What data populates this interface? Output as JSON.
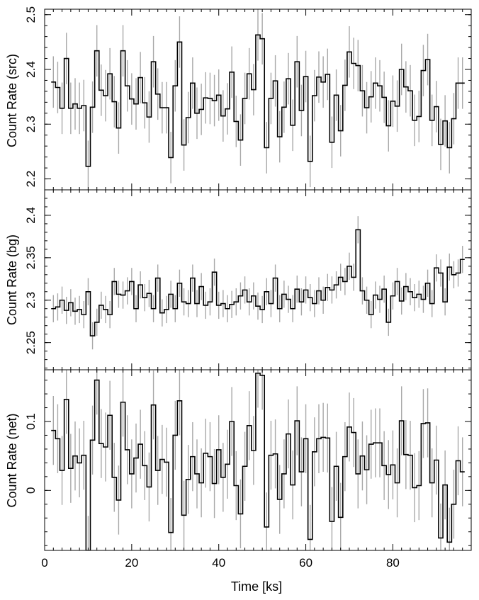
{
  "chart_data": [
    {
      "type": "line",
      "step": true,
      "error_bars": true,
      "ylabel": "Count Rate (src)",
      "xlim": [
        0,
        98
      ],
      "ylim": [
        2.18,
        2.51
      ],
      "yticks": [
        2.2,
        2.3,
        2.4,
        2.5
      ],
      "x": [
        2,
        3,
        4,
        5,
        6,
        7,
        8,
        9,
        10,
        11,
        12,
        13,
        14,
        15,
        16,
        17,
        18,
        19,
        20,
        21,
        22,
        23,
        24,
        25,
        26,
        27,
        28,
        29,
        30,
        31,
        32,
        33,
        34,
        35,
        36,
        37,
        38,
        39,
        40,
        41,
        42,
        43,
        44,
        45,
        46,
        47,
        48,
        49,
        50,
        51,
        52,
        53,
        54,
        55,
        56,
        57,
        58,
        59,
        60,
        61,
        62,
        63,
        64,
        65,
        66,
        67,
        68,
        69,
        70,
        71,
        72,
        73,
        74,
        75,
        76,
        77,
        78,
        79,
        80,
        81,
        82,
        83,
        84,
        85,
        86,
        87,
        88,
        89,
        90,
        91,
        92,
        93,
        94,
        95,
        96
      ],
      "y": [
        2.377,
        2.367,
        2.329,
        2.42,
        2.329,
        2.337,
        2.329,
        2.334,
        2.223,
        2.331,
        2.434,
        2.362,
        2.352,
        2.392,
        2.341,
        2.293,
        2.434,
        2.37,
        2.346,
        2.337,
        2.385,
        2.339,
        2.313,
        2.414,
        2.355,
        2.33,
        2.33,
        2.239,
        2.37,
        2.45,
        2.262,
        2.312,
        2.375,
        2.32,
        2.327,
        2.348,
        2.347,
        2.343,
        2.353,
        2.315,
        2.328,
        2.395,
        2.305,
        2.271,
        2.347,
        2.392,
        2.363,
        2.463,
        2.456,
        2.257,
        2.347,
        2.379,
        2.277,
        2.331,
        2.383,
        2.298,
        2.414,
        2.325,
        2.387,
        2.232,
        2.352,
        2.386,
        2.377,
        2.391,
        2.267,
        2.353,
        2.288,
        2.371,
        2.432,
        2.411,
        2.407,
        2.361,
        2.33,
        2.35,
        2.375,
        2.37,
        2.349,
        2.297,
        2.342,
        2.333,
        2.4,
        2.368,
        2.361,
        2.307,
        2.314,
        2.398,
        2.418,
        2.307,
        2.332,
        2.263,
        2.306,
        2.257,
        2.31,
        2.375,
        2.375
      ],
      "yerr": 0.047
    },
    {
      "type": "line",
      "step": true,
      "error_bars": true,
      "ylabel": "Count Rate (bg)",
      "xlim": [
        0,
        98
      ],
      "ylim": [
        2.218,
        2.43
      ],
      "yticks": [
        2.25,
        2.3,
        2.35,
        2.4
      ],
      "x": [
        2,
        3,
        4,
        5,
        6,
        7,
        8,
        9,
        10,
        11,
        12,
        13,
        14,
        15,
        16,
        17,
        18,
        19,
        20,
        21,
        22,
        23,
        24,
        25,
        26,
        27,
        28,
        29,
        30,
        31,
        32,
        33,
        34,
        35,
        36,
        37,
        38,
        39,
        40,
        41,
        42,
        43,
        44,
        45,
        46,
        47,
        48,
        49,
        50,
        51,
        52,
        53,
        54,
        55,
        56,
        57,
        58,
        59,
        60,
        61,
        62,
        63,
        64,
        65,
        66,
        67,
        68,
        69,
        70,
        71,
        72,
        73,
        74,
        75,
        76,
        77,
        78,
        79,
        80,
        81,
        82,
        83,
        84,
        85,
        86,
        87,
        88,
        89,
        90,
        91,
        92,
        93,
        94,
        95,
        96
      ],
      "y": [
        2.29,
        2.292,
        2.3,
        2.288,
        2.297,
        2.287,
        2.289,
        2.283,
        2.31,
        2.258,
        2.274,
        2.294,
        2.289,
        2.283,
        2.322,
        2.307,
        2.306,
        2.311,
        2.322,
        2.29,
        2.318,
        2.303,
        2.308,
        2.29,
        2.326,
        2.285,
        2.289,
        2.307,
        2.29,
        2.32,
        2.298,
        2.296,
        2.326,
        2.296,
        2.316,
        2.294,
        2.298,
        2.333,
        2.294,
        2.296,
        2.29,
        2.295,
        2.298,
        2.305,
        2.312,
        2.298,
        2.305,
        2.293,
        2.289,
        2.31,
        2.296,
        2.326,
        2.29,
        2.307,
        2.301,
        2.29,
        2.313,
        2.298,
        2.312,
        2.303,
        2.296,
        2.311,
        2.3,
        2.315,
        2.312,
        2.318,
        2.327,
        2.322,
        2.34,
        2.327,
        2.383,
        2.311,
        2.3,
        2.283,
        2.306,
        2.301,
        2.313,
        2.274,
        2.305,
        2.322,
        2.299,
        2.316,
        2.31,
        2.303,
        2.307,
        2.301,
        2.32,
        2.296,
        2.338,
        2.332,
        2.298,
        2.339,
        2.33,
        2.332,
        2.348
      ],
      "yerr": 0.016
    },
    {
      "type": "line",
      "step": true,
      "error_bars": true,
      "ylabel": "Count Rate (net)",
      "xlabel": "Time [ks]",
      "xlim": [
        0,
        98
      ],
      "xticks": [
        0,
        20,
        40,
        60,
        80
      ],
      "ylim": [
        -0.087,
        0.175
      ],
      "yticks": [
        0,
        0.1
      ],
      "x": [
        2,
        3,
        4,
        5,
        6,
        7,
        8,
        9,
        10,
        11,
        12,
        13,
        14,
        15,
        16,
        17,
        18,
        19,
        20,
        21,
        22,
        23,
        24,
        25,
        26,
        27,
        28,
        29,
        30,
        31,
        32,
        33,
        34,
        35,
        36,
        37,
        38,
        39,
        40,
        41,
        42,
        43,
        44,
        45,
        46,
        47,
        48,
        49,
        50,
        51,
        52,
        53,
        54,
        55,
        56,
        57,
        58,
        59,
        60,
        61,
        62,
        63,
        64,
        65,
        66,
        67,
        68,
        69,
        70,
        71,
        72,
        73,
        74,
        75,
        76,
        77,
        78,
        79,
        80,
        81,
        82,
        83,
        84,
        85,
        86,
        87,
        88,
        89,
        90,
        91,
        92,
        93,
        94,
        95,
        96
      ],
      "y": [
        0.087,
        0.075,
        0.029,
        0.132,
        0.032,
        0.05,
        0.04,
        0.051,
        -0.087,
        0.073,
        0.16,
        0.068,
        0.063,
        0.109,
        0.019,
        -0.014,
        0.128,
        0.059,
        0.024,
        0.047,
        0.067,
        0.036,
        0.005,
        0.124,
        0.029,
        0.045,
        0.041,
        -0.061,
        0.08,
        0.13,
        -0.036,
        0.016,
        0.049,
        0.024,
        0.011,
        0.054,
        0.049,
        0.01,
        0.059,
        0.019,
        0.038,
        0.1,
        0.007,
        -0.034,
        0.035,
        0.094,
        0.058,
        0.17,
        0.167,
        -0.053,
        0.051,
        0.053,
        -0.013,
        0.024,
        0.082,
        0.008,
        0.101,
        0.027,
        0.075,
        -0.071,
        0.056,
        0.075,
        0.077,
        0.076,
        -0.045,
        0.035,
        -0.039,
        0.049,
        0.092,
        0.084,
        0.024,
        0.05,
        0.03,
        0.067,
        0.069,
        0.069,
        0.036,
        0.023,
        0.037,
        0.011,
        0.101,
        0.052,
        0.051,
        0.004,
        0.007,
        0.097,
        0.098,
        0.011,
        0.044,
        -0.069,
        0.008,
        -0.075,
        -0.02,
        0.043,
        0.027
      ],
      "yerr": 0.05
    }
  ]
}
